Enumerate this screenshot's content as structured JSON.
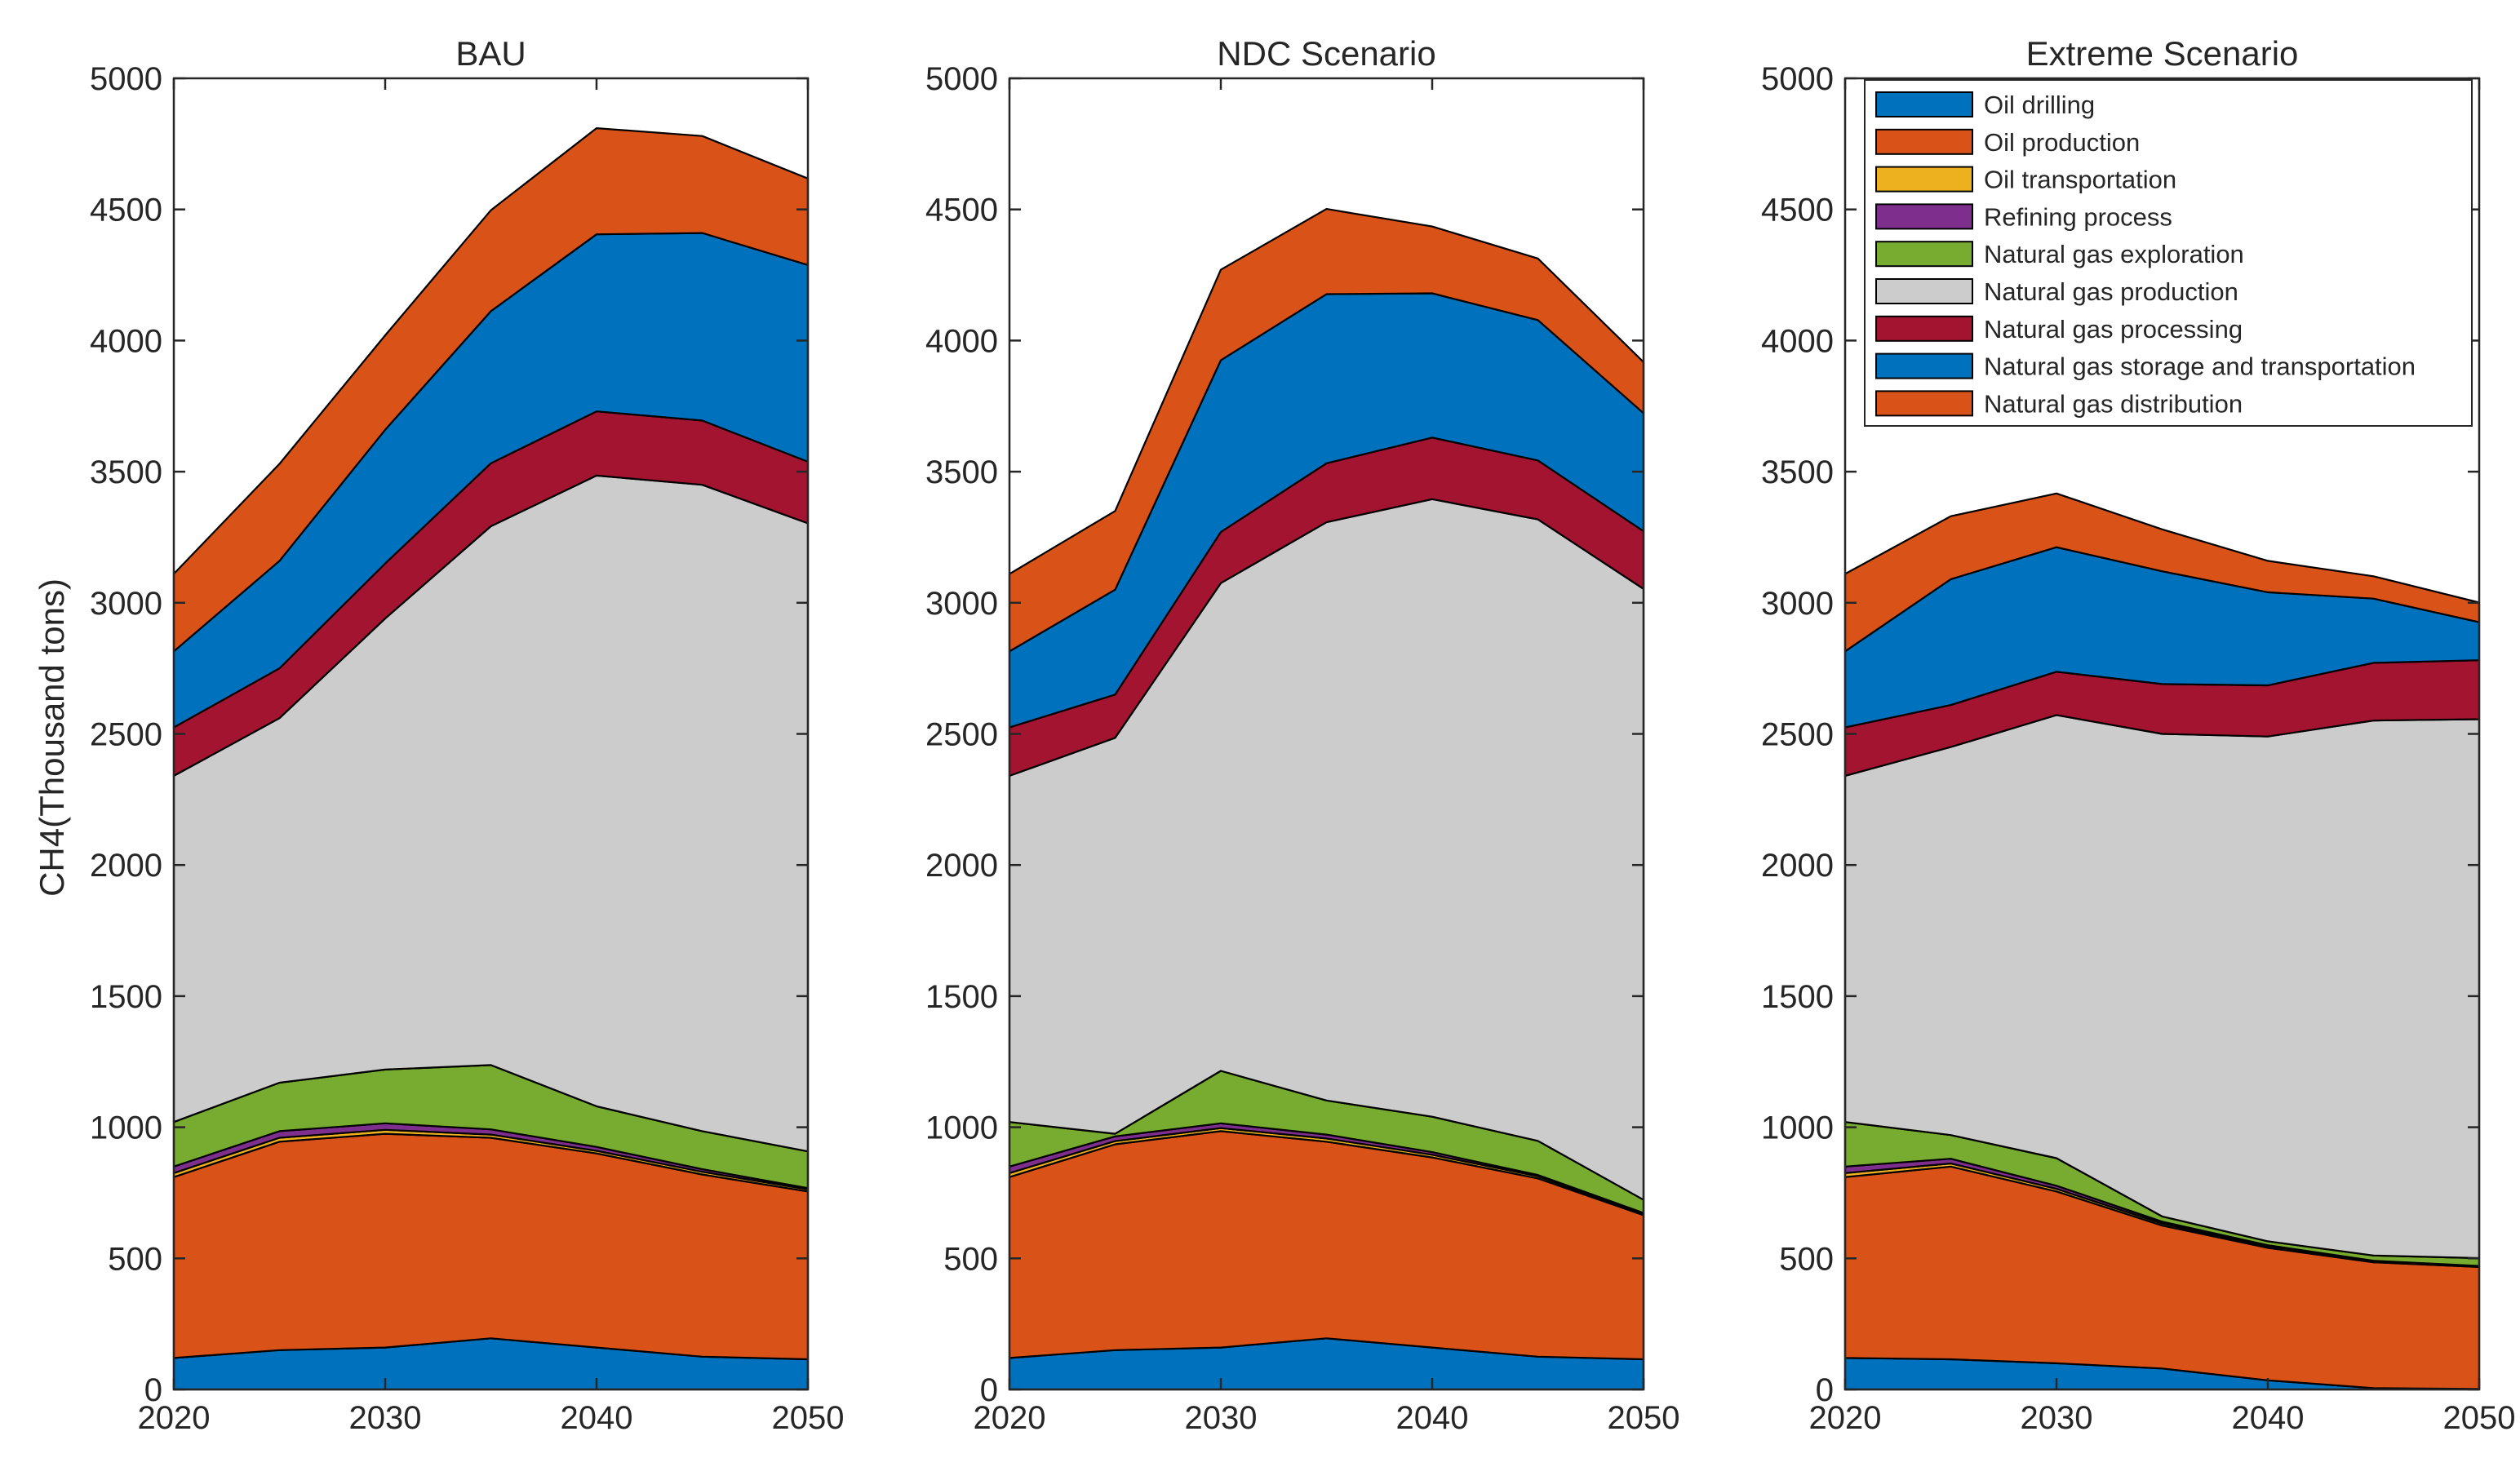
{
  "figure": {
    "ylabel": "CH4(Thousand tons)"
  },
  "chart_data": [
    {
      "type": "area",
      "stacked": true,
      "title": "BAU",
      "xlabel": "",
      "ylabel": "CH4(Thousand tons)",
      "x": [
        2020,
        2025,
        2030,
        2035,
        2040,
        2045,
        2050
      ],
      "xlim": [
        2020,
        2050
      ],
      "ylim": [
        0,
        5000
      ],
      "xticks": [
        2020,
        2030,
        2040,
        2050
      ],
      "yticks": [
        0,
        500,
        1000,
        1500,
        2000,
        2500,
        3000,
        3500,
        4000,
        4500,
        5000
      ],
      "grid": false,
      "series": [
        {
          "name": "Oil drilling",
          "values": [
            120,
            150,
            160,
            195,
            160,
            125,
            115
          ]
        },
        {
          "name": "Oil production",
          "values": [
            690,
            795,
            815,
            765,
            740,
            695,
            640
          ]
        },
        {
          "name": "Oil transportation",
          "values": [
            15,
            15,
            15,
            12,
            10,
            10,
            8
          ]
        },
        {
          "name": "Refining process",
          "values": [
            25,
            25,
            25,
            20,
            15,
            10,
            5
          ]
        },
        {
          "name": "Natural gas exploration",
          "values": [
            170,
            185,
            205,
            245,
            155,
            145,
            140
          ]
        },
        {
          "name": "Natural gas production",
          "values": [
            1320,
            1390,
            1720,
            2055,
            2405,
            2465,
            2395
          ]
        },
        {
          "name": "Natural gas processing",
          "values": [
            185,
            190,
            210,
            240,
            245,
            245,
            235
          ]
        },
        {
          "name": "Natural gas storage and transportation",
          "values": [
            290,
            410,
            510,
            580,
            675,
            715,
            750
          ]
        },
        {
          "name": "Natural gas distribution",
          "values": [
            295,
            370,
            360,
            385,
            405,
            370,
            330
          ]
        }
      ]
    },
    {
      "type": "area",
      "stacked": true,
      "title": "NDC Scenario",
      "xlabel": "",
      "ylabel": "",
      "x": [
        2020,
        2025,
        2030,
        2035,
        2040,
        2045,
        2050
      ],
      "xlim": [
        2020,
        2050
      ],
      "ylim": [
        0,
        5000
      ],
      "xticks": [
        2020,
        2030,
        2040,
        2050
      ],
      "yticks": [
        0,
        500,
        1000,
        1500,
        2000,
        2500,
        3000,
        3500,
        4000,
        4500,
        5000
      ],
      "grid": false,
      "series": [
        {
          "name": "Oil drilling",
          "values": [
            120,
            150,
            160,
            195,
            160,
            125,
            115
          ]
        },
        {
          "name": "Oil production",
          "values": [
            690,
            785,
            825,
            750,
            725,
            680,
            550
          ]
        },
        {
          "name": "Oil transportation",
          "values": [
            15,
            12,
            12,
            12,
            10,
            8,
            5
          ]
        },
        {
          "name": "Refining process",
          "values": [
            25,
            18,
            18,
            15,
            10,
            5,
            3
          ]
        },
        {
          "name": "Natural gas exploration",
          "values": [
            170,
            10,
            200,
            130,
            135,
            130,
            50
          ]
        },
        {
          "name": "Natural gas production",
          "values": [
            1320,
            1510,
            1860,
            2205,
            2355,
            2370,
            2330
          ]
        },
        {
          "name": "Natural gas processing",
          "values": [
            185,
            165,
            195,
            225,
            235,
            225,
            220
          ]
        },
        {
          "name": "Natural gas storage and transportation",
          "values": [
            290,
            400,
            655,
            645,
            550,
            535,
            450
          ]
        },
        {
          "name": "Natural gas distribution",
          "values": [
            295,
            300,
            345,
            325,
            255,
            235,
            195
          ]
        }
      ]
    },
    {
      "type": "area",
      "stacked": true,
      "title": "Extreme Scenario",
      "xlabel": "",
      "ylabel": "",
      "x": [
        2020,
        2025,
        2030,
        2035,
        2040,
        2045,
        2050
      ],
      "xlim": [
        2020,
        2050
      ],
      "ylim": [
        0,
        5000
      ],
      "xticks": [
        2020,
        2030,
        2040,
        2050
      ],
      "yticks": [
        0,
        500,
        1000,
        1500,
        2000,
        2500,
        3000,
        3500,
        4000,
        4500,
        5000
      ],
      "grid": false,
      "legend": "top-right",
      "series": [
        {
          "name": "Oil drilling",
          "values": [
            120,
            115,
            100,
            80,
            35,
            5,
            2
          ]
        },
        {
          "name": "Oil production",
          "values": [
            690,
            735,
            655,
            545,
            505,
            480,
            465
          ]
        },
        {
          "name": "Oil transportation",
          "values": [
            15,
            12,
            10,
            8,
            5,
            3,
            2
          ]
        },
        {
          "name": "Refining process",
          "values": [
            25,
            18,
            12,
            7,
            5,
            3,
            2
          ]
        },
        {
          "name": "Natural gas exploration",
          "values": [
            170,
            90,
            105,
            20,
            15,
            20,
            30
          ]
        },
        {
          "name": "Natural gas production",
          "values": [
            1320,
            1480,
            1690,
            1840,
            1925,
            2040,
            2055
          ]
        },
        {
          "name": "Natural gas processing",
          "values": [
            185,
            160,
            165,
            190,
            195,
            220,
            225
          ]
        },
        {
          "name": "Natural gas storage and transportation",
          "values": [
            290,
            480,
            475,
            430,
            355,
            245,
            145
          ]
        },
        {
          "name": "Natural gas distribution",
          "values": [
            295,
            240,
            205,
            160,
            120,
            85,
            75
          ]
        }
      ]
    }
  ],
  "colors": {
    "Oil drilling": "#0072BD",
    "Oil production": "#D95319",
    "Oil transportation": "#EDB120",
    "Refining process": "#7E2F8E",
    "Natural gas exploration": "#77AC30",
    "Natural gas production": "#CCCCCC",
    "Natural gas processing": "#A2142F",
    "Natural gas storage and transportation": "#0072BD",
    "Natural gas distribution": "#D95319"
  }
}
